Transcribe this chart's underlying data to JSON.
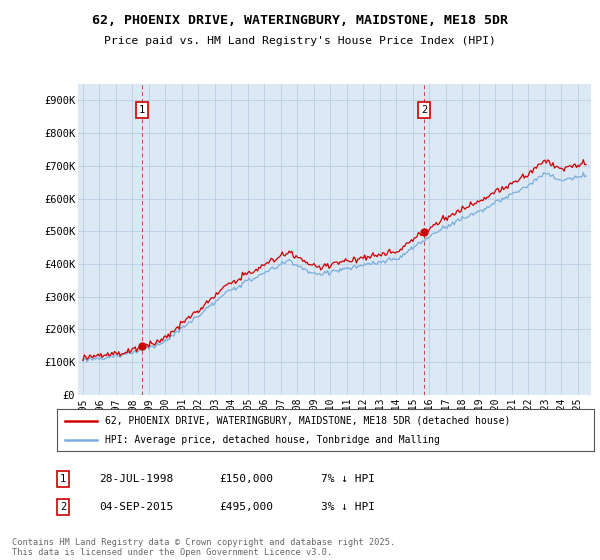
{
  "title_line1": "62, PHOENIX DRIVE, WATERINGBURY, MAIDSTONE, ME18 5DR",
  "title_line2": "Price paid vs. HM Land Registry's House Price Index (HPI)",
  "ylabel_ticks": [
    "£0",
    "£100K",
    "£200K",
    "£300K",
    "£400K",
    "£500K",
    "£600K",
    "£700K",
    "£800K",
    "£900K"
  ],
  "ytick_values": [
    0,
    100000,
    200000,
    300000,
    400000,
    500000,
    600000,
    700000,
    800000,
    900000
  ],
  "ylim": [
    0,
    950000
  ],
  "xlim_start": 1994.7,
  "xlim_end": 2025.8,
  "marker1_date": 1998.57,
  "marker1_price": 150000,
  "marker1_label": "1",
  "marker2_date": 2015.67,
  "marker2_price": 495000,
  "marker2_label": "2",
  "legend_line1": "62, PHOENIX DRIVE, WATERINGBURY, MAIDSTONE, ME18 5DR (detached house)",
  "legend_line2": "HPI: Average price, detached house, Tonbridge and Malling",
  "line_color_red": "#cc0000",
  "line_color_blue": "#7aaddb",
  "marker_box_color": "#cc0000",
  "footer_text": "Contains HM Land Registry data © Crown copyright and database right 2025.\nThis data is licensed under the Open Government Licence v3.0.",
  "background_color": "#ffffff",
  "plot_bg_color": "#dce9f5",
  "grid_color": "#b0c8e0"
}
